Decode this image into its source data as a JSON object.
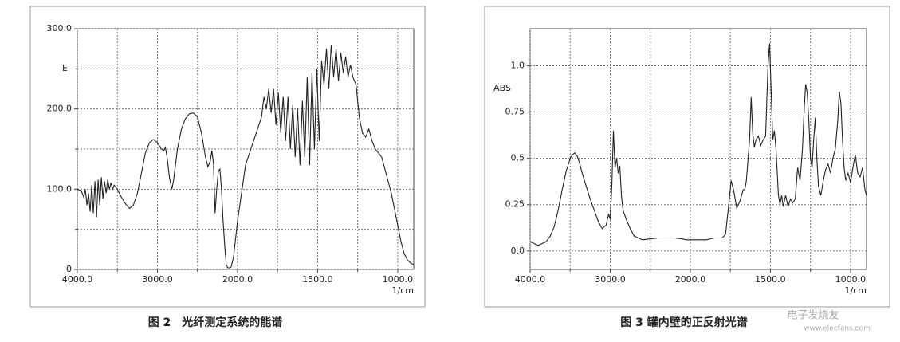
{
  "chart_data": [
    {
      "type": "line",
      "caption": "图 2　光纤测定系统的能谱",
      "ylabel": "E",
      "xlabel": "1/cm",
      "color": "#222222",
      "grid": true,
      "xlim": [
        4000,
        900
      ],
      "x_expand_below": 2000,
      "ylim": [
        0,
        300
      ],
      "xticks": [
        {
          "value": 4000,
          "label": "4000.0"
        },
        {
          "value": 3000,
          "label": "3000.0"
        },
        {
          "value": 2000,
          "label": "2000.0"
        },
        {
          "value": 1500,
          "label": "1500.0"
        },
        {
          "value": 1000,
          "label": "1000.0"
        }
      ],
      "xminor": [
        3500,
        2500,
        1750,
        1250
      ],
      "yticks": [
        0,
        {
          "value": 100,
          "label": "100.0"
        },
        {
          "value": 200,
          "label": "200.0"
        },
        {
          "value": 300,
          "label": "300.0"
        }
      ],
      "yminor": [
        50,
        150,
        250
      ],
      "x": [
        4000,
        3950,
        3920,
        3900,
        3880,
        3860,
        3840,
        3820,
        3800,
        3780,
        3760,
        3740,
        3720,
        3700,
        3680,
        3660,
        3640,
        3620,
        3600,
        3580,
        3560,
        3540,
        3500,
        3450,
        3400,
        3350,
        3300,
        3250,
        3200,
        3150,
        3100,
        3050,
        3000,
        2950,
        2920,
        2900,
        2880,
        2850,
        2820,
        2800,
        2750,
        2700,
        2650,
        2600,
        2550,
        2500,
        2450,
        2400,
        2370,
        2340,
        2320,
        2300,
        2280,
        2260,
        2240,
        2220,
        2200,
        2180,
        2160,
        2140,
        2120,
        2100,
        2080,
        2050,
        2000,
        1950,
        1900,
        1850,
        1835,
        1820,
        1805,
        1790,
        1775,
        1760,
        1745,
        1730,
        1715,
        1700,
        1685,
        1670,
        1655,
        1640,
        1625,
        1610,
        1595,
        1580,
        1565,
        1550,
        1535,
        1520,
        1505,
        1490,
        1475,
        1460,
        1445,
        1430,
        1415,
        1400,
        1385,
        1370,
        1355,
        1340,
        1325,
        1310,
        1295,
        1280,
        1260,
        1240,
        1220,
        1200,
        1180,
        1160,
        1140,
        1120,
        1100,
        1080,
        1060,
        1040,
        1020,
        1000,
        980,
        960,
        940,
        920,
        900
      ],
      "values": [
        100,
        98,
        90,
        100,
        80,
        95,
        72,
        105,
        70,
        110,
        65,
        112,
        80,
        115,
        88,
        110,
        95,
        112,
        100,
        108,
        100,
        105,
        100,
        90,
        82,
        76,
        80,
        95,
        120,
        145,
        158,
        162,
        158,
        150,
        148,
        152,
        140,
        115,
        100,
        110,
        150,
        175,
        188,
        194,
        195,
        190,
        170,
        140,
        128,
        135,
        148,
        132,
        70,
        100,
        122,
        125,
        100,
        60,
        30,
        5,
        2,
        2,
        3,
        15,
        60,
        130,
        160,
        190,
        215,
        200,
        225,
        195,
        225,
        180,
        220,
        170,
        215,
        160,
        215,
        150,
        205,
        140,
        200,
        130,
        210,
        140,
        240,
        130,
        245,
        150,
        250,
        160,
        260,
        230,
        275,
        225,
        280,
        240,
        275,
        235,
        270,
        245,
        265,
        240,
        255,
        240,
        230,
        190,
        170,
        165,
        175,
        160,
        150,
        145,
        140,
        125,
        110,
        95,
        75,
        55,
        35,
        20,
        12,
        8,
        6
      ]
    },
    {
      "type": "line",
      "caption": "图 3 罐内壁的正反射光谱",
      "ylabel": "ABS",
      "xlabel": "1/cm",
      "color": "#222222",
      "grid": true,
      "xlim": [
        4000,
        900
      ],
      "x_expand_below": 2000,
      "ylim": [
        -0.1,
        1.2
      ],
      "xticks": [
        {
          "value": 4000,
          "label": "4000.0"
        },
        {
          "value": 3000,
          "label": "3000.0"
        },
        {
          "value": 2000,
          "label": "2000.0"
        },
        {
          "value": 1500,
          "label": "1500.0"
        },
        {
          "value": 1000,
          "label": "1000.0"
        }
      ],
      "xminor": [
        3500,
        2500,
        1750,
        1250
      ],
      "yticks": [
        {
          "value": 0,
          "label": "0.0"
        },
        0.25,
        0.5,
        0.75,
        {
          "value": 1,
          "label": "1.0"
        }
      ],
      "x": [
        4000,
        3950,
        3900,
        3850,
        3800,
        3750,
        3700,
        3650,
        3600,
        3550,
        3500,
        3470,
        3440,
        3410,
        3380,
        3350,
        3300,
        3250,
        3200,
        3150,
        3100,
        3050,
        3020,
        3000,
        2980,
        2960,
        2940,
        2920,
        2900,
        2880,
        2860,
        2840,
        2800,
        2750,
        2700,
        2600,
        2500,
        2400,
        2300,
        2200,
        2100,
        2050,
        2000,
        1900,
        1850,
        1800,
        1780,
        1760,
        1745,
        1730,
        1710,
        1690,
        1670,
        1660,
        1650,
        1630,
        1620,
        1610,
        1600,
        1590,
        1575,
        1560,
        1545,
        1530,
        1515,
        1505,
        1495,
        1485,
        1475,
        1465,
        1450,
        1440,
        1430,
        1420,
        1405,
        1390,
        1375,
        1360,
        1345,
        1330,
        1315,
        1300,
        1290,
        1280,
        1270,
        1260,
        1250,
        1240,
        1230,
        1220,
        1210,
        1200,
        1185,
        1170,
        1155,
        1140,
        1125,
        1110,
        1095,
        1080,
        1070,
        1060,
        1050,
        1040,
        1030,
        1015,
        1000,
        985,
        970,
        955,
        940,
        925,
        910,
        900
      ],
      "values": [
        0.05,
        0.04,
        0.03,
        0.04,
        0.05,
        0.08,
        0.13,
        0.22,
        0.33,
        0.43,
        0.5,
        0.52,
        0.53,
        0.51,
        0.47,
        0.42,
        0.35,
        0.28,
        0.22,
        0.16,
        0.12,
        0.14,
        0.2,
        0.17,
        0.35,
        0.65,
        0.45,
        0.5,
        0.42,
        0.46,
        0.3,
        0.22,
        0.17,
        0.12,
        0.08,
        0.06,
        0.065,
        0.07,
        0.07,
        0.07,
        0.065,
        0.06,
        0.06,
        0.06,
        0.07,
        0.07,
        0.09,
        0.25,
        0.38,
        0.33,
        0.23,
        0.27,
        0.33,
        0.33,
        0.38,
        0.6,
        0.83,
        0.63,
        0.56,
        0.6,
        0.62,
        0.57,
        0.6,
        0.62,
        1.0,
        1.12,
        0.85,
        0.6,
        0.65,
        0.55,
        0.3,
        0.25,
        0.3,
        0.24,
        0.3,
        0.24,
        0.28,
        0.26,
        0.28,
        0.45,
        0.38,
        0.55,
        0.75,
        0.9,
        0.85,
        0.7,
        0.5,
        0.45,
        0.6,
        0.72,
        0.5,
        0.35,
        0.3,
        0.38,
        0.44,
        0.47,
        0.42,
        0.5,
        0.55,
        0.7,
        0.86,
        0.8,
        0.6,
        0.45,
        0.38,
        0.42,
        0.37,
        0.45,
        0.52,
        0.42,
        0.4,
        0.45,
        0.33,
        0.3
      ]
    }
  ],
  "watermark": {
    "name": "电子发烧友",
    "url": "www.elecfans.com"
  }
}
